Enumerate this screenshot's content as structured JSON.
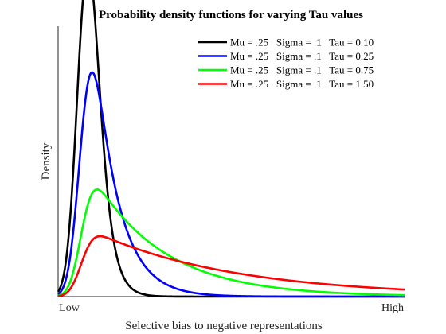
{
  "chart_data": {
    "type": "line",
    "title": "Probability density functions for varying Tau values",
    "xlabel": "Selective bias to negative representations",
    "ylabel": "Density",
    "x_tick_labels": [
      "Low",
      "High"
    ],
    "xlim": [
      0,
      3.7
    ],
    "ylim": [
      0,
      2.55
    ],
    "grid": false,
    "legend_position": "top-right",
    "series": [
      {
        "name": "Mu = .25   Sigma = .1   Tau = 0.10",
        "mu": 0.25,
        "sigma": 0.1,
        "tau": 0.1,
        "color": "#000000"
      },
      {
        "name": "Mu = .25   Sigma = .1   Tau = 0.25",
        "mu": 0.25,
        "sigma": 0.1,
        "tau": 0.25,
        "color": "#0000ff"
      },
      {
        "name": "Mu = .25   Sigma = .1   Tau = 0.75",
        "mu": 0.25,
        "sigma": 0.1,
        "tau": 0.75,
        "color": "#00ff00"
      },
      {
        "name": "Mu = .25   Sigma = .1   Tau = 1.50",
        "mu": 0.25,
        "sigma": 0.1,
        "tau": 1.5,
        "color": "#ff0000"
      }
    ]
  }
}
